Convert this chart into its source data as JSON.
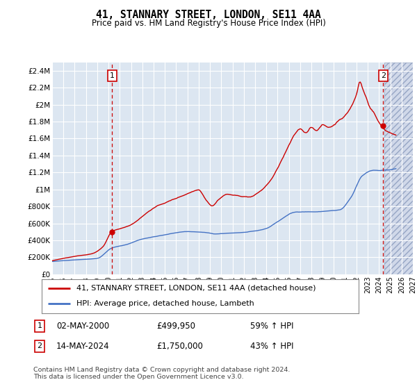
{
  "title": "41, STANNARY STREET, LONDON, SE11 4AA",
  "subtitle": "Price paid vs. HM Land Registry's House Price Index (HPI)",
  "hpi_label": "HPI: Average price, detached house, Lambeth",
  "property_label": "41, STANNARY STREET, LONDON, SE11 4AA (detached house)",
  "annotation1": {
    "label": "1",
    "date": "02-MAY-2000",
    "price": "£499,950",
    "hpi": "59% ↑ HPI"
  },
  "annotation2": {
    "label": "2",
    "date": "14-MAY-2024",
    "price": "£1,750,000",
    "hpi": "43% ↑ HPI"
  },
  "footnote": "Contains HM Land Registry data © Crown copyright and database right 2024.\nThis data is licensed under the Open Government Licence v3.0.",
  "bg_color": "#dce6f1",
  "grid_color": "#ffffff",
  "red_color": "#cc0000",
  "blue_color": "#4472c4",
  "ylim": [
    0,
    2500000
  ],
  "yticks": [
    0,
    200000,
    400000,
    600000,
    800000,
    1000000,
    1200000,
    1400000,
    1600000,
    1800000,
    2000000,
    2200000,
    2400000
  ],
  "ytick_labels": [
    "£0",
    "£200K",
    "£400K",
    "£600K",
    "£800K",
    "£1M",
    "£1.2M",
    "£1.4M",
    "£1.6M",
    "£1.8M",
    "£2M",
    "£2.2M",
    "£2.4M"
  ],
  "xmin": 1995,
  "xmax": 2027,
  "xticks": [
    1995,
    1996,
    1997,
    1998,
    1999,
    2000,
    2001,
    2002,
    2003,
    2004,
    2005,
    2006,
    2007,
    2008,
    2009,
    2010,
    2011,
    2012,
    2013,
    2014,
    2015,
    2016,
    2017,
    2018,
    2019,
    2020,
    2021,
    2022,
    2023,
    2024,
    2025,
    2026,
    2027
  ],
  "marker1_x": 2000.33,
  "marker1_y": 499950,
  "marker2_x": 2024.37,
  "marker2_y": 1750000,
  "hatch_start": 2024.5
}
